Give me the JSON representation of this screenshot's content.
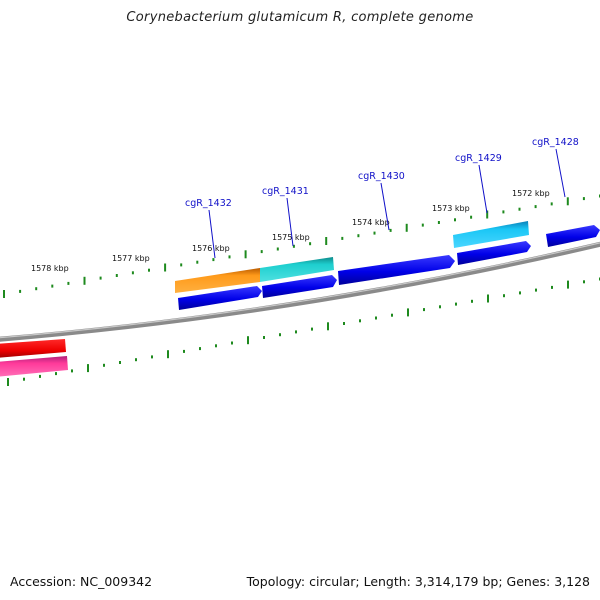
{
  "title": "Corynebacterium glutamicum R, complete genome",
  "footer": {
    "accession": "Accession: NC_009342",
    "summary": "Topology: circular; Length: 3,314,179 bp; Genes: 3,128"
  },
  "tick_labels": [
    "1578 kbp",
    "1577 kbp",
    "1576 kbp",
    "1575 kbp",
    "1574 kbp",
    "1573 kbp",
    "1572 kbp"
  ],
  "gene_labels": [
    "cgR_1432",
    "cgR_1431",
    "cgR_1430",
    "cgR_1429",
    "cgR_1428"
  ],
  "colors": {
    "backbone": "#8a8a8a",
    "tick": "#1e8a1e",
    "gene_label": "#1010c8",
    "cds_forward": "#0000ee",
    "orange_feature": "#ff9a1a",
    "teal_feature": "#1ecfcf",
    "cyan_feature": "#1ac6f5",
    "red_feature": "#ee0000",
    "pink_feature": "#ff3a9a"
  }
}
